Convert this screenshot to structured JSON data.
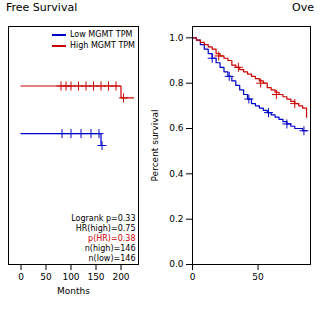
{
  "chart_data": [
    {
      "type": "step",
      "title": "Free Survival",
      "xlabel": "Months",
      "xlim": [
        -25,
        235
      ],
      "xticks": [
        0,
        50,
        100,
        150,
        200
      ],
      "ylim": [
        0.82,
        1.02
      ],
      "tick_labels": "x",
      "grid": false,
      "legend": "upper right",
      "series": [
        {
          "name": "Low MGMT TPM",
          "color": "#0000CC",
          "marker": "plus",
          "x": [
            0,
            80,
            90,
            100,
            110,
            120,
            130,
            140,
            150,
            155,
            160,
            165
          ],
          "values": [
            0.93,
            0.93,
            0.93,
            0.93,
            0.93,
            0.93,
            0.93,
            0.93,
            0.93,
            0.93,
            0.92,
            0.92
          ],
          "censor_x": [
            82,
            100,
            120,
            140,
            156,
            162
          ],
          "censor_y": [
            0.93,
            0.93,
            0.93,
            0.93,
            0.93,
            0.92
          ]
        },
        {
          "name": "High MGMT TPM",
          "color": "#CC0000",
          "marker": "plus",
          "x": [
            0,
            80,
            85,
            90,
            95,
            100,
            105,
            110,
            115,
            120,
            125,
            130,
            135,
            140,
            145,
            150,
            155,
            160,
            165,
            170,
            175,
            180,
            185,
            190,
            195,
            200,
            205,
            210,
            215,
            220,
            225
          ],
          "values": [
            0.97,
            0.97,
            0.97,
            0.97,
            0.97,
            0.97,
            0.97,
            0.97,
            0.97,
            0.97,
            0.97,
            0.97,
            0.97,
            0.97,
            0.97,
            0.97,
            0.97,
            0.97,
            0.97,
            0.97,
            0.97,
            0.97,
            0.97,
            0.97,
            0.97,
            0.96,
            0.96,
            0.96,
            0.96,
            0.96,
            0.96
          ],
          "censor_x": [
            80,
            90,
            100,
            115,
            130,
            145,
            160,
            175,
            190,
            205
          ],
          "censor_y": [
            0.97,
            0.97,
            0.97,
            0.97,
            0.97,
            0.97,
            0.97,
            0.97,
            0.97,
            0.96
          ]
        }
      ],
      "annotations": [
        {
          "text": "Logrank p=0.33",
          "color": "#000000"
        },
        {
          "text": "HR(high)=0.75",
          "color": "#000000"
        },
        {
          "text": "p(HR)=0.38",
          "color": "#CC0000"
        },
        {
          "text": "n(high)=146",
          "color": "#000000"
        },
        {
          "text": "n(low)=146",
          "color": "#000000"
        }
      ]
    },
    {
      "type": "step",
      "title": "Ove",
      "ylabel": "Percent survival",
      "xlim": [
        0,
        90
      ],
      "xticks": [
        0,
        50
      ],
      "ylim": [
        0.0,
        1.05
      ],
      "yticks": [
        {
          "value": 0,
          "label": "0.0"
        },
        0.2,
        0.4,
        0.6,
        0.8,
        {
          "value": 1,
          "label": "1.0"
        }
      ],
      "grid": false,
      "series": [
        {
          "name": "Low MGMT TPM",
          "color": "#0000CC",
          "marker": "plus",
          "x": [
            0,
            3,
            6,
            9,
            12,
            15,
            18,
            21,
            24,
            27,
            30,
            33,
            36,
            39,
            42,
            45,
            48,
            51,
            54,
            57,
            60,
            63,
            66,
            69,
            72,
            75,
            78,
            81,
            84,
            87
          ],
          "values": [
            1.0,
            0.99,
            0.97,
            0.95,
            0.93,
            0.91,
            0.89,
            0.87,
            0.85,
            0.83,
            0.81,
            0.79,
            0.77,
            0.75,
            0.73,
            0.71,
            0.7,
            0.69,
            0.68,
            0.67,
            0.66,
            0.65,
            0.64,
            0.63,
            0.62,
            0.61,
            0.6,
            0.6,
            0.59,
            0.59
          ],
          "censor_x": [
            15,
            28,
            43,
            58,
            72,
            85
          ],
          "censor_y": [
            0.91,
            0.83,
            0.73,
            0.67,
            0.62,
            0.59
          ]
        },
        {
          "name": "High MGMT TPM",
          "color": "#CC0000",
          "marker": "plus",
          "x": [
            0,
            3,
            6,
            9,
            12,
            15,
            18,
            21,
            24,
            27,
            30,
            33,
            36,
            39,
            42,
            45,
            48,
            51,
            54,
            57,
            60,
            63,
            66,
            69,
            72,
            75,
            78,
            81,
            84,
            87
          ],
          "values": [
            1.0,
            0.99,
            0.98,
            0.97,
            0.96,
            0.95,
            0.93,
            0.92,
            0.91,
            0.9,
            0.88,
            0.87,
            0.86,
            0.85,
            0.84,
            0.83,
            0.82,
            0.81,
            0.8,
            0.78,
            0.77,
            0.76,
            0.75,
            0.74,
            0.73,
            0.72,
            0.71,
            0.7,
            0.69,
            0.65
          ],
          "censor_x": [
            20,
            35,
            52,
            64,
            78
          ],
          "censor_y": [
            0.92,
            0.87,
            0.8,
            0.75,
            0.71
          ]
        }
      ]
    }
  ]
}
